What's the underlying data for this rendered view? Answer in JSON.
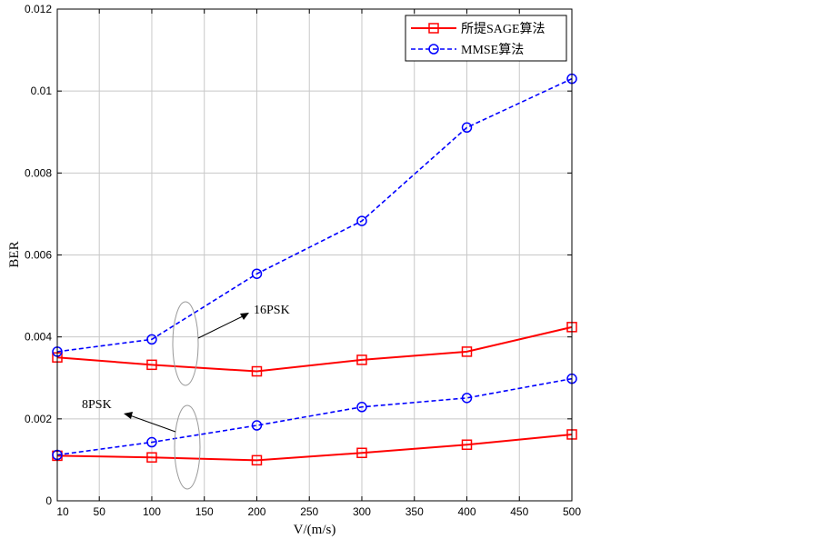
{
  "chart_data": {
    "type": "line",
    "xlabel": "V/(m/s)",
    "ylabel": "BER",
    "xlim": [
      10,
      500
    ],
    "ylim": [
      0,
      0.012
    ],
    "xticks": [
      10,
      50,
      100,
      150,
      200,
      250,
      300,
      350,
      400,
      450,
      500
    ],
    "xtick_labels": [
      "10",
      "50",
      "100",
      "150",
      "200",
      "250",
      "300",
      "350",
      "400",
      "450",
      "500"
    ],
    "yticks": [
      0,
      0.002,
      0.004,
      0.006,
      0.008,
      0.01,
      0.012
    ],
    "ytick_labels": [
      "0",
      "0.002",
      "0.004",
      "0.006",
      "0.008",
      "0.01",
      "0.012"
    ],
    "grid": true,
    "legend_position": "top-right",
    "x": [
      10,
      100,
      200,
      300,
      400,
      500
    ],
    "legend": [
      {
        "name": "所提SAGE算法",
        "color": "#ff0000",
        "linestyle": "solid",
        "marker": "square"
      },
      {
        "name": "MMSE算法",
        "color": "#0000ff",
        "linestyle": "dashed",
        "marker": "circle"
      }
    ],
    "series": [
      {
        "group": "16PSK",
        "legend_ref": 0,
        "color": "#ff0000",
        "dash": "solid",
        "marker": "square",
        "values": [
          0.0035,
          0.00332,
          0.00316,
          0.00344,
          0.00364,
          0.00424
        ]
      },
      {
        "group": "16PSK",
        "legend_ref": 1,
        "color": "#0000ff",
        "dash": "dashed",
        "marker": "circle",
        "values": [
          0.00364,
          0.00394,
          0.00554,
          0.00683,
          0.00911,
          0.0103
        ]
      },
      {
        "group": "8PSK",
        "legend_ref": 0,
        "color": "#ff0000",
        "dash": "solid",
        "marker": "square",
        "values": [
          0.0011,
          0.00106,
          0.00099,
          0.00117,
          0.00137,
          0.00162
        ]
      },
      {
        "group": "8PSK",
        "legend_ref": 1,
        "color": "#0000ff",
        "dash": "dashed",
        "marker": "circle",
        "values": [
          0.00112,
          0.00143,
          0.00184,
          0.00229,
          0.00251,
          0.00298
        ]
      }
    ],
    "annotations": [
      {
        "text": "16PSK"
      },
      {
        "text": "8PSK"
      }
    ]
  }
}
